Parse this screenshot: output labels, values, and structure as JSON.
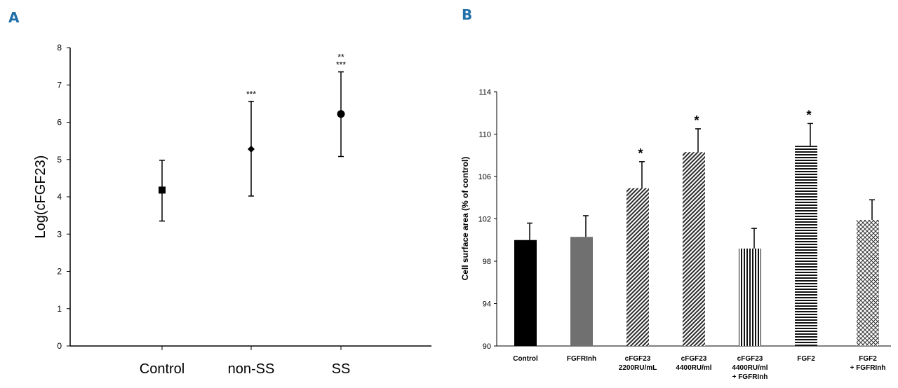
{
  "figure": {
    "panel_a_label": "A",
    "panel_b_label": "B"
  },
  "chart_data": [
    {
      "type": "scatter",
      "panel": "A",
      "title": "",
      "xlabel": "",
      "ylabel": "Log(cFGF23)",
      "ylim": [
        0,
        8
      ],
      "yticks": [
        0,
        1,
        2,
        3,
        4,
        5,
        6,
        7,
        8
      ],
      "categories": [
        "Control",
        "non-SS",
        "SS"
      ],
      "values": [
        4.18,
        5.28,
        6.22
      ],
      "err_low": [
        3.35,
        4.02,
        5.08
      ],
      "err_high": [
        4.98,
        6.56,
        7.35
      ],
      "markers": [
        "square",
        "diamond",
        "circle"
      ],
      "annotations": [
        [
          "",
          ""
        ],
        [
          "***",
          ""
        ],
        [
          "**",
          "***"
        ]
      ]
    },
    {
      "type": "bar",
      "panel": "B",
      "title": "",
      "xlabel": "",
      "ylabel": "Cell surface area (% of control)",
      "ylim": [
        90,
        114
      ],
      "yticks": [
        90,
        94,
        98,
        102,
        106,
        110,
        114
      ],
      "categories": [
        [
          "Control"
        ],
        [
          "FGFRInh"
        ],
        [
          "cFGF23",
          "2200RU/mL"
        ],
        [
          "cFGF23",
          "4400RU/ml"
        ],
        [
          "cFGF23",
          "4400RU/ml",
          "+ FGFRInh"
        ],
        [
          "FGF2"
        ],
        [
          "FGF2",
          "+ FGFRInh"
        ]
      ],
      "values": [
        100.0,
        100.3,
        104.9,
        108.3,
        99.2,
        108.9,
        101.9
      ],
      "errors": [
        1.6,
        2.0,
        2.5,
        2.2,
        1.9,
        2.1,
        1.9
      ],
      "significance": [
        "",
        "",
        "*",
        "*",
        "",
        "*",
        ""
      ],
      "fills": [
        "solid-black",
        "solid-gray",
        "diagonal-dense",
        "diagonal-dense",
        "vertical-lines",
        "horizontal-lines",
        "crosshatch"
      ],
      "colors": {
        "black": "#000000",
        "gray": "#707070"
      }
    }
  ]
}
